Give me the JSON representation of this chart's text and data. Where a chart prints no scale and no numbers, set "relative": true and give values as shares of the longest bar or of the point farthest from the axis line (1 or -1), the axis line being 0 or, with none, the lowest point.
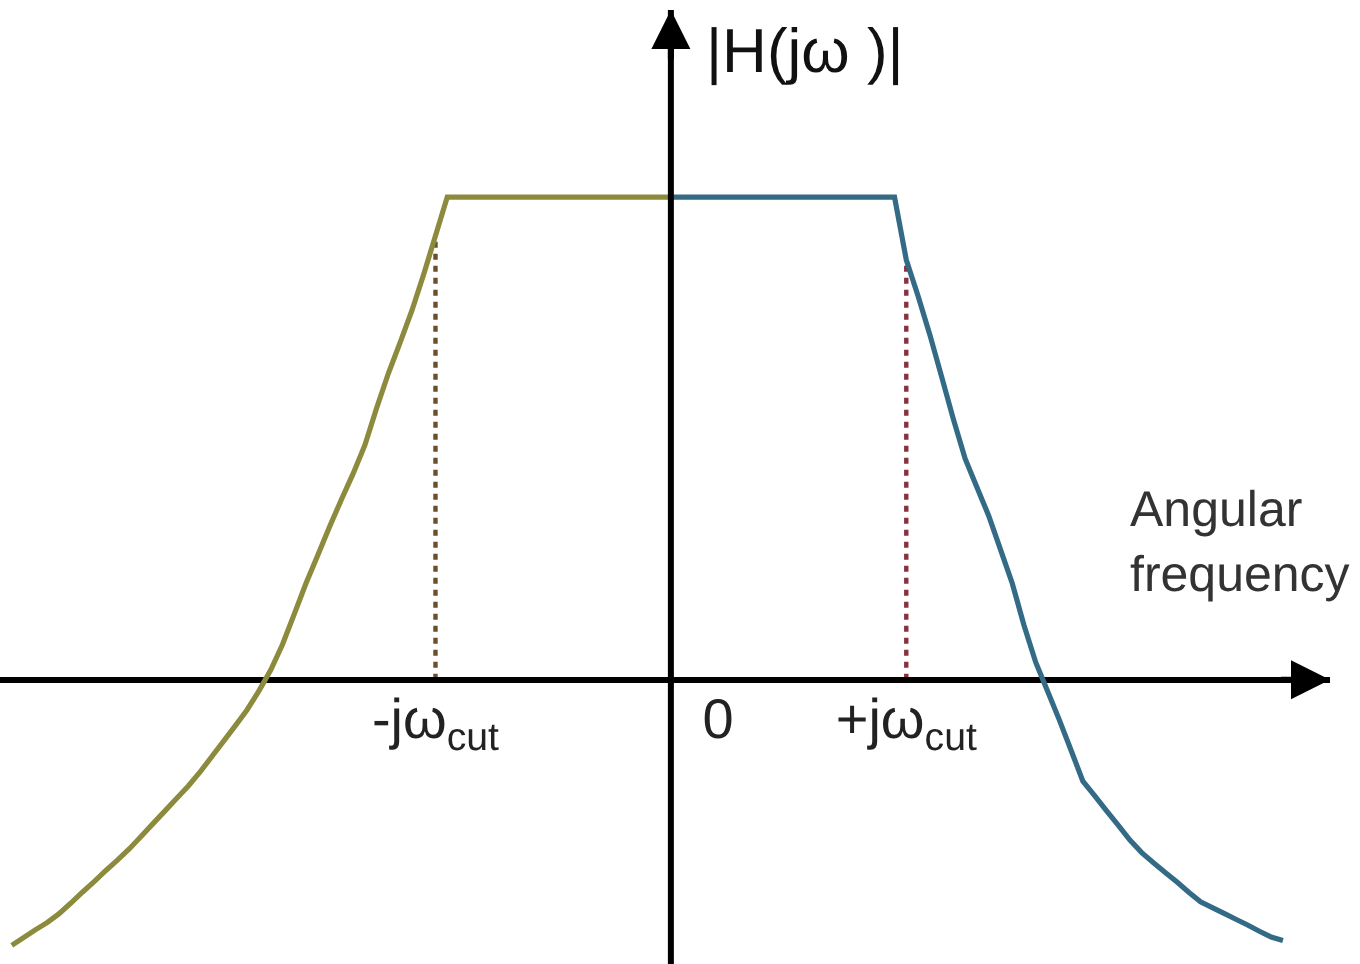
{
  "chart_data": {
    "type": "line",
    "relative": true,
    "xlabel": "Angular frequency",
    "ylabel": "|H(jω )|",
    "categories": [
      null,
      null,
      null,
      null,
      null,
      null,
      null,
      null,
      null,
      null,
      null,
      null,
      null,
      null,
      null,
      null,
      null,
      null,
      null,
      null,
      null,
      null,
      null,
      null,
      null,
      null,
      null,
      null,
      null,
      null,
      null,
      null,
      null,
      null,
      null,
      null,
      "-jω$_{cut}$",
      null,
      null,
      null,
      null,
      null,
      null,
      null,
      null,
      null,
      null,
      null,
      null,
      null,
      null,
      null,
      null,
      null,
      null,
      null,
      null,
      null,
      null,
      null,
      "0",
      null,
      null,
      null,
      null,
      null,
      null,
      null,
      null,
      null,
      null,
      null,
      null,
      null,
      null,
      null,
      "+jω$_{cut}$",
      null,
      null,
      null,
      null,
      null,
      null,
      null,
      null,
      null,
      null,
      null,
      null,
      null,
      null,
      null,
      null,
      null,
      null,
      null,
      null,
      null,
      null,
      null,
      null,
      null,
      null,
      null,
      null,
      null,
      null,
      null,
      null,
      null,
      null,
      null,
      null
    ],
    "marker": "none",
    "line_style": "solid",
    "series": [
      {
        "color": "#8c8a3c",
        "values": [
          -0.55,
          -0.534,
          -0.518,
          -0.503,
          -0.485,
          -0.463,
          -0.44,
          -0.418,
          -0.395,
          -0.373,
          -0.35,
          -0.324,
          -0.298,
          -0.272,
          -0.246,
          -0.22,
          -0.191,
          -0.159,
          -0.127,
          -0.095,
          -0.062,
          -0.023,
          0.02,
          0.073,
          0.136,
          0.2,
          0.258,
          0.317,
          0.373,
          0.427,
          0.486,
          0.563,
          0.635,
          0.699,
          0.765,
          0.84,
          0.92,
          1,
          1,
          1,
          1,
          1,
          1,
          1,
          1,
          1,
          1,
          1,
          1,
          1,
          1,
          1,
          1,
          1,
          1,
          1,
          1,
          null,
          null,
          null,
          null,
          null,
          null,
          null,
          null,
          null,
          null,
          null,
          null,
          null,
          null,
          null,
          null,
          null,
          null,
          null,
          null,
          null,
          null,
          null,
          null,
          null,
          null,
          null,
          null,
          null,
          null,
          null,
          null,
          null,
          null,
          null,
          null,
          null,
          null,
          null,
          null,
          null,
          null,
          null,
          null,
          null,
          null,
          null,
          null,
          null,
          null,
          null,
          null,
          null,
          null,
          null,
          null
        ]
      },
      {
        "color": "#336b87",
        "values": [
          null,
          null,
          null,
          null,
          null,
          null,
          null,
          null,
          null,
          null,
          null,
          null,
          null,
          null,
          null,
          null,
          null,
          null,
          null,
          null,
          null,
          null,
          null,
          null,
          null,
          null,
          null,
          null,
          null,
          null,
          null,
          null,
          null,
          null,
          null,
          null,
          null,
          null,
          null,
          null,
          null,
          null,
          null,
          null,
          null,
          null,
          null,
          null,
          null,
          null,
          null,
          null,
          null,
          null,
          null,
          null,
          1,
          1,
          1,
          1,
          1,
          1,
          1,
          1,
          1,
          1,
          1,
          1,
          1,
          1,
          1,
          1,
          1,
          1,
          1,
          1,
          0.87,
          0.795,
          0.715,
          0.628,
          0.54,
          0.458,
          0.399,
          0.34,
          0.27,
          0.2,
          0.113,
          0.036,
          -0.023,
          -0.083,
          -0.146,
          -0.21,
          -0.24,
          -0.271,
          -0.301,
          -0.332,
          -0.358,
          -0.379,
          -0.399,
          -0.419,
          -0.44,
          -0.46,
          -0.472,
          -0.484,
          -0.496,
          -0.508,
          -0.521,
          -0.533,
          -0.54,
          null,
          null,
          null,
          null
        ]
      }
    ],
    "ref_lines": [
      {
        "axis": "x",
        "value": "-jω$_{cut}$",
        "color": "#6b4f2a",
        "line_style": "dotted"
      },
      {
        "axis": "x",
        "value": "+jω$_{cut}$",
        "color": "#8a3040",
        "line_style": "dotted"
      }
    ]
  }
}
